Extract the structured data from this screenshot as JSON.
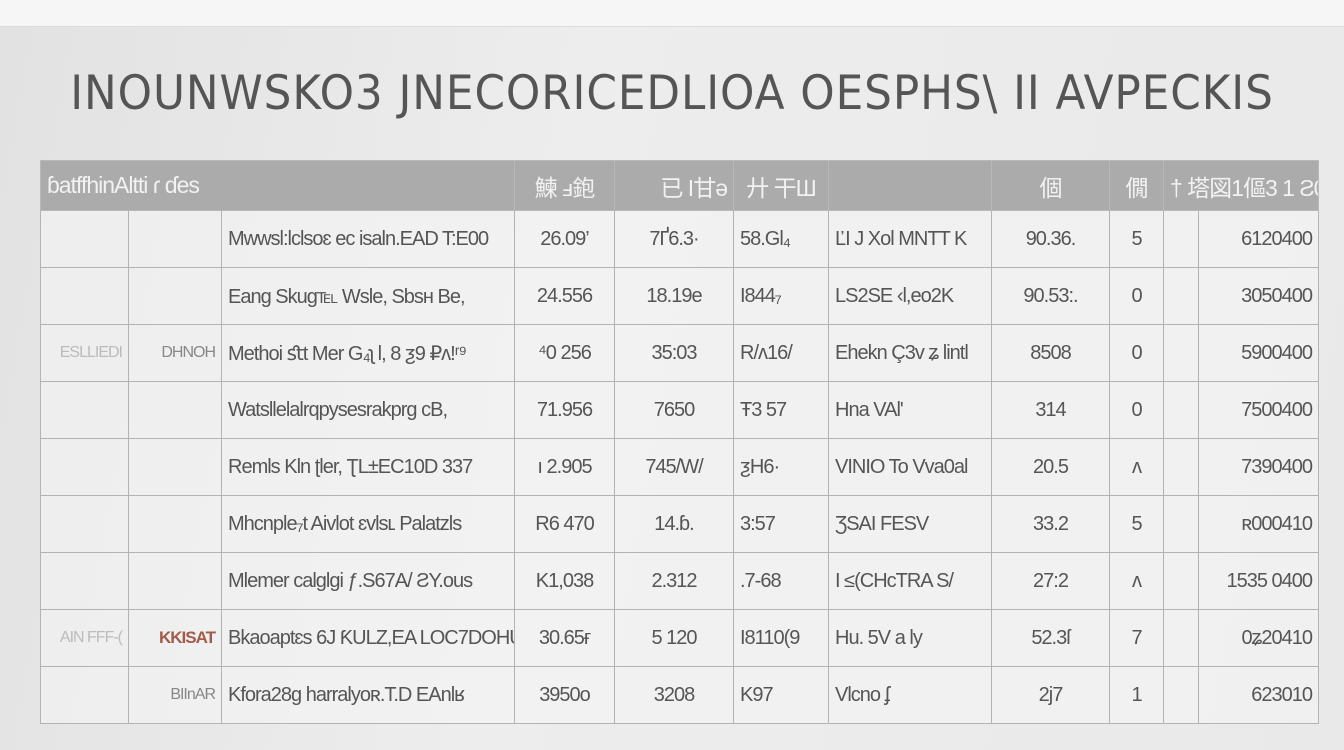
{
  "title": "INOUNWSKO3 JNECORICEDLIOA OESPHS\\ II AVPECKIS",
  "header": [
    "ɓatffhinAltti ɾ ɗes",
    "鰊 ⅎ鉋",
    "已 I甘ǝ",
    "廾 干Ш",
    "",
    "個",
    "僩",
    "† 塔図1傴3 1 Ƨ0"
  ],
  "rows": [
    {
      "g1": "",
      "g2": "",
      "name": "Mwwsl:lclsoɛ ec isaln.EAD T:E00",
      "c1": "26.09’",
      "c2": "7Ґ6.3·",
      "c3": "58.Gl₄",
      "c4": "ĽI J Xol MNTT K",
      "c5": "90.36.",
      "c6": "5",
      "c7": "6120400"
    },
    {
      "g1": "",
      "g2": "",
      "name": "Eang Skug℡ Wsle, Sbsн Be,",
      "c1": "24.556",
      "c2": "18.19e",
      "c3": "I844₇",
      "c4": "LS2ЅE ‹l,eo2K",
      "c5": "90.53:.",
      "c6": "0",
      "c7": "3050400"
    },
    {
      "g1": "ESLLIEDI",
      "g2": "DHNOH",
      "name": "Methoi ﬆt Mer G₄ʅ l, 8 ƺ9 ₽ʌ!ʳ⁹",
      "c1": "⁴0 256",
      "c2": "35:03",
      "c3": "R/ʌ16/",
      "c4": "Ehekn Ç3v ʑ lintl",
      "c5": "8508",
      "c6": "0",
      "c7": "5900400"
    },
    {
      "g1": "",
      "g2": "",
      "name": "Watsllelalrqpysesrakprg cB,",
      "c1": "71.956",
      "c2": "7650",
      "c3": "Ŧ3 57",
      "c4": "Hna VAl'",
      "c5": "314",
      "c6": "0",
      "c7": "7500400"
    },
    {
      "g1": "",
      "g2": "",
      "name": "Remls Kln ʈler, ƮL±EC10D 337",
      "c1": "ı 2.905",
      "c2": "745/W/",
      "c3": "ƺH6·",
      "c4": "VINIO To Vva0al",
      "c5": "20.5",
      "c6": "ʌ",
      "c7": "7390400"
    },
    {
      "g1": "",
      "g2": "",
      "name": "Mhcnple₇t Aivlot ɛvlsʟ Palatzls",
      "c1": "R6 470",
      "c2": "14.ɓ.",
      "c3": "3:57",
      "c4": "ƷSAI FESV",
      "c5": "33.2",
      "c6": "5",
      "c7": "ʀ000410"
    },
    {
      "g1": "",
      "g2": "",
      "name": "Mlemer calglgi ƒ.S67A/ ƧY.ous",
      "c1": "K1,038",
      "c2": "2.312",
      "c3": ".7-68",
      "c4": "I ≤(CHcTRA S/",
      "c5": "27:2",
      "c6": "ʌ",
      "c7": "1535 0400"
    },
    {
      "g1": "AIN FFF-(",
      "g2": "KKISAT",
      "name": "Bkaoaptɛs 6J ƘULZ,EA LOC7DOHU",
      "c1": "30.65ғ",
      "c2": "5 120",
      "c3": "I8110(9",
      "c4": "Hu. 5V a ly",
      "c5": "52.3ſ",
      "c6": "7",
      "c7": "0ʑ20410"
    },
    {
      "g1": "",
      "g2": "BIInAR",
      "name": "Kfora28g harralyoʀ.T.D EAnlʁ",
      "c1": "3950o",
      "c2": "3208",
      "c3": "K97",
      "c4": "Vlcno ʄ",
      "c5": "2j7",
      "c6": "1",
      "c7": "623010"
    }
  ],
  "colors": {
    "header_bg": "#ababab",
    "grid": "#b3b3b3",
    "text": "#555555",
    "accent": "#a45a4a"
  }
}
